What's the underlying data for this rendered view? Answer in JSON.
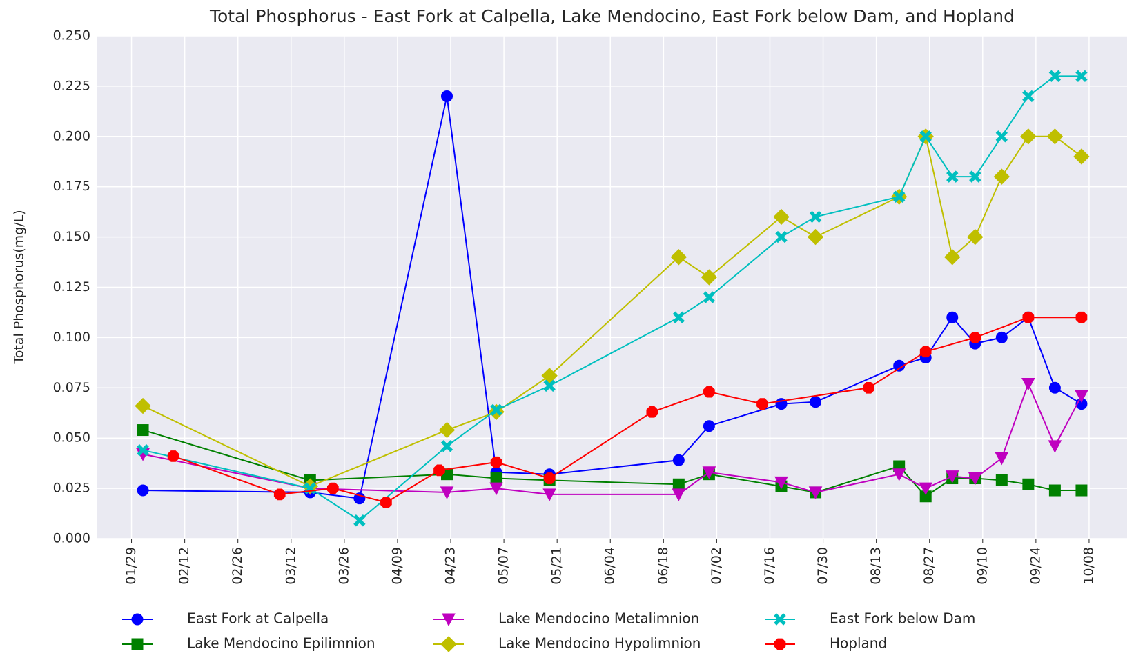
{
  "chart_data": {
    "type": "line",
    "title": "Total Phosphorus - East Fork at Calpella, Lake Mendocino, East Fork below Dam, and Hopland",
    "y_label": "Total Phosphorus(mg/L)",
    "xlim": [
      "01/20",
      "10/18"
    ],
    "xticks": [
      "01/29",
      "02/12",
      "02/26",
      "03/12",
      "03/26",
      "04/09",
      "04/23",
      "05/07",
      "05/21",
      "06/04",
      "06/18",
      "07/02",
      "07/16",
      "07/30",
      "08/13",
      "08/27",
      "09/10",
      "09/24",
      "10/08"
    ],
    "ylim": [
      0,
      0.25
    ],
    "yticks": [
      {
        "value": 0,
        "label": "0.000"
      },
      0.025,
      {
        "value": 0.05,
        "label": "0.050"
      },
      0.075,
      {
        "value": 0.1,
        "label": "0.100"
      },
      0.125,
      {
        "value": 0.15,
        "label": "0.150"
      },
      0.175,
      {
        "value": 0.2,
        "label": "0.200"
      },
      0.225,
      {
        "value": 0.25,
        "label": "0.250"
      }
    ],
    "grid": true,
    "legend": "bottom",
    "series": [
      {
        "name": "East Fork at Calpella",
        "color": "#0000ff",
        "marker": "o",
        "x": [
          "02/01",
          "03/17",
          "03/30",
          "04/22",
          "05/05",
          "05/19",
          "06/22",
          "06/30",
          "07/19",
          "07/28",
          "08/19",
          "08/26",
          "09/02",
          "09/08",
          "09/15",
          "09/22",
          "09/29",
          "10/06"
        ],
        "values": [
          0.024,
          0.023,
          0.02,
          0.22,
          0.033,
          0.032,
          0.039,
          0.056,
          0.067,
          0.068,
          0.086,
          0.09,
          0.11,
          0.097,
          0.1,
          0.11,
          0.075,
          0.067
        ]
      },
      {
        "name": "Lake Mendocino Epilimnion",
        "color": "#008000",
        "marker": "s",
        "x": [
          "02/01",
          "03/17",
          "04/22",
          "05/05",
          "05/19",
          "06/22",
          "06/30",
          "07/19",
          "07/28",
          "08/19",
          "08/26",
          "09/02",
          "09/08",
          "09/15",
          "09/22",
          "09/29",
          "10/06"
        ],
        "values": [
          0.054,
          0.029,
          0.032,
          0.03,
          0.029,
          0.027,
          0.032,
          0.026,
          0.023,
          0.036,
          0.021,
          0.03,
          0.03,
          0.029,
          0.027,
          0.024,
          0.024
        ]
      },
      {
        "name": "Lake Mendocino Metalimnion",
        "color": "#bf00bf",
        "marker": "v",
        "x": [
          "02/01",
          "03/17",
          "04/22",
          "05/05",
          "05/19",
          "06/22",
          "06/30",
          "07/19",
          "07/28",
          "08/19",
          "08/26",
          "09/02",
          "09/08",
          "09/15",
          "09/22",
          "09/29",
          "10/06"
        ],
        "values": [
          0.042,
          0.025,
          0.023,
          0.025,
          0.022,
          0.022,
          0.033,
          0.028,
          0.023,
          0.032,
          0.025,
          0.031,
          0.03,
          0.04,
          0.077,
          0.046,
          0.071
        ]
      },
      {
        "name": "Lake Mendocino Hypolimnion",
        "color": "#bfbf00",
        "marker": "D",
        "x": [
          "02/01",
          "03/17",
          "04/22",
          "05/05",
          "05/19",
          "06/22",
          "06/30",
          "07/19",
          "07/28",
          "08/19",
          "08/26",
          "09/02",
          "09/08",
          "09/15",
          "09/22",
          "09/29",
          "10/06"
        ],
        "values": [
          0.066,
          0.026,
          0.054,
          0.063,
          0.081,
          0.14,
          0.13,
          0.16,
          0.15,
          0.17,
          0.2,
          0.14,
          0.15,
          0.18,
          0.2,
          0.2,
          0.19
        ]
      },
      {
        "name": "East Fork below Dam",
        "color": "#00bfbf",
        "marker": "X",
        "x": [
          "02/01",
          "03/17",
          "03/30",
          "04/22",
          "05/05",
          "05/19",
          "06/22",
          "06/30",
          "07/19",
          "07/28",
          "08/19",
          "08/26",
          "09/02",
          "09/08",
          "09/15",
          "09/22",
          "09/29",
          "10/06"
        ],
        "values": [
          0.044,
          0.025,
          0.009,
          0.046,
          0.064,
          0.076,
          0.11,
          0.12,
          0.15,
          0.16,
          0.17,
          0.2,
          0.18,
          0.18,
          0.2,
          0.22,
          0.23,
          0.23
        ]
      },
      {
        "name": "Hopland",
        "color": "#ff0000",
        "marker": "8",
        "x": [
          "02/09",
          "03/09",
          "03/23",
          "04/06",
          "04/20",
          "05/05",
          "05/19",
          "06/15",
          "06/30",
          "07/14",
          "08/11",
          "08/26",
          "09/08",
          "09/22",
          "10/06"
        ],
        "values": [
          0.041,
          0.022,
          0.025,
          0.018,
          0.034,
          0.038,
          0.03,
          0.063,
          0.073,
          0.067,
          0.075,
          0.093,
          0.1,
          0.11,
          0.11
        ]
      }
    ]
  }
}
